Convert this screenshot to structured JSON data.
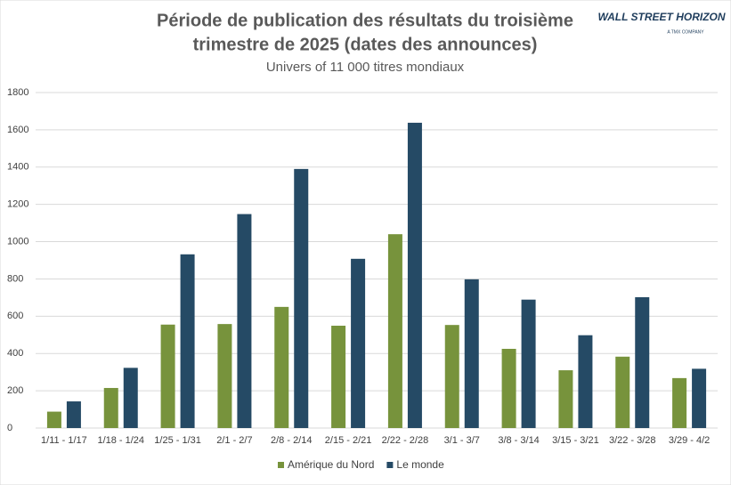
{
  "chart_data": {
    "type": "bar",
    "title": [
      "Période de publication des résultats du troisième",
      "trimestre de 2025 (dates des announces)"
    ],
    "subtitle": "Univers of 11 000 titres mondiaux",
    "logo": {
      "name": "WALL STREET HORIZON",
      "tagline": "A TMX COMPANY"
    },
    "categories": [
      "1/11 - 1/17",
      "1/18 - 1/24",
      "1/25 - 1/31",
      "2/1 - 2/7",
      "2/8 - 2/14",
      "2/15 - 2/21",
      "2/22 - 2/28",
      "3/1 - 3/7",
      "3/8 - 3/14",
      "3/15 - 3/21",
      "3/22 - 3/28",
      "3/29 - 4/2"
    ],
    "series": [
      {
        "name": "Amérique du Nord",
        "color": "#77933c",
        "values": [
          88,
          215,
          555,
          558,
          650,
          549,
          1040,
          553,
          425,
          310,
          383,
          268
        ]
      },
      {
        "name": "Le monde",
        "color": "#254a65",
        "values": [
          143,
          323,
          932,
          1148,
          1390,
          908,
          1638,
          798,
          689,
          498,
          702,
          318
        ]
      }
    ],
    "ylim": [
      0,
      1800
    ],
    "yticks": [
      0,
      200,
      400,
      600,
      800,
      1000,
      1200,
      1400,
      1600,
      1800
    ],
    "grid": true,
    "legend": "bottom"
  }
}
